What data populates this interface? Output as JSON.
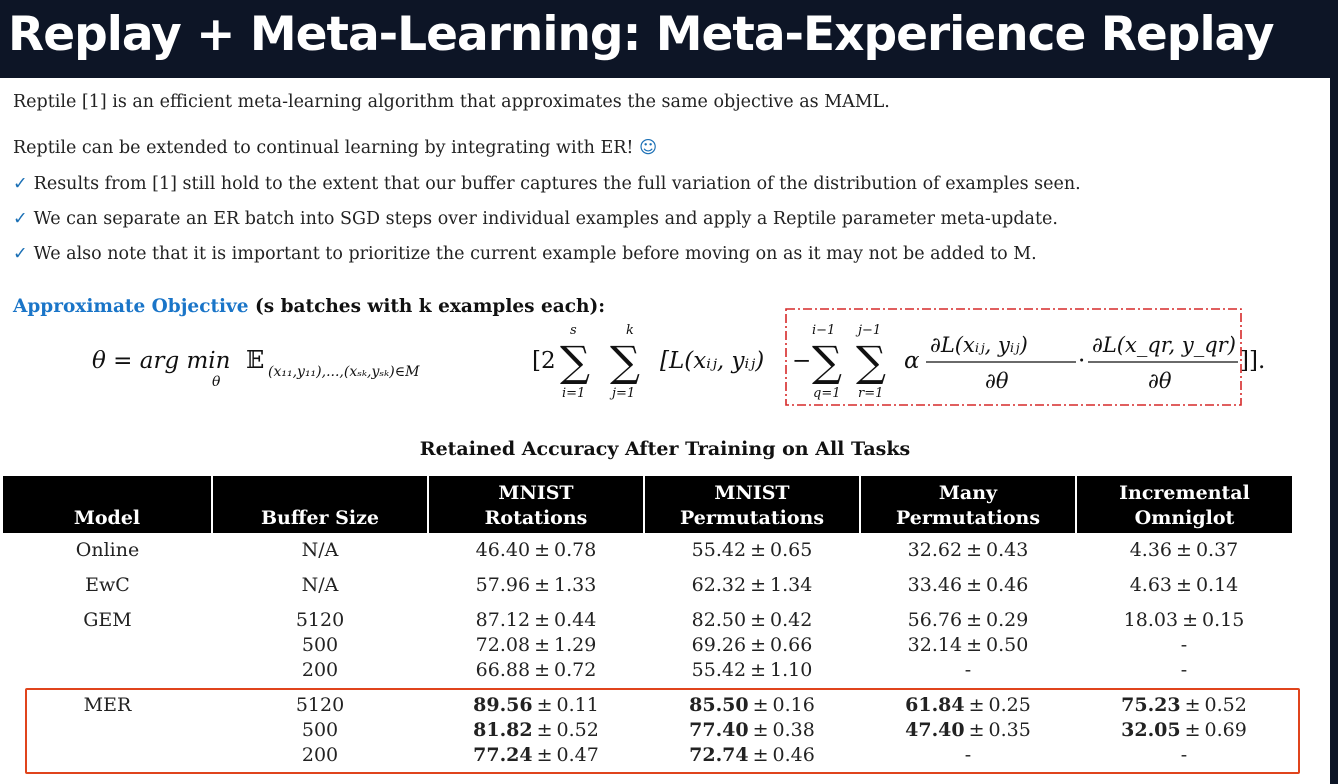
{
  "slide_title": "Replay + Meta-Learning: Meta-Experience Replay",
  "intro_lines": [
    "Reptile [1] is an efficient meta-learning algorithm that approximates the same objective as MAML.",
    "Reptile can be extended to continual learning by integrating with ER!"
  ],
  "smile_glyph": "☺",
  "check_glyph": "✓",
  "bullets": [
    "Results from [1] still hold to the extent that our buffer captures the full variation of the distribution of examples seen.",
    "We can separate an ER batch into SGD steps over individual examples and apply a Reptile parameter meta-update.",
    "We also note that it is important to prioritize the current example before moving on as it may not be added to M."
  ],
  "objective": {
    "heading_blue": "Approximate Objective",
    "heading_rest": " (s batches with k examples each):",
    "lhs": "θ = arg min",
    "argmin_sub": "θ",
    "expectation": "𝔼",
    "expectation_sub": "(x₁₁,y₁₁),...,(xₛₖ,yₛₖ)∈M",
    "bracket_open": "[2",
    "sum1_top": "s",
    "sum1_bottom": "i=1",
    "sum2_top": "k",
    "sum2_bottom": "j=1",
    "loss_term": "[L(xᵢⱼ, yᵢⱼ)",
    "minus": "−",
    "sum3_top": "i−1",
    "sum3_bottom": "q=1",
    "sum4_top": "j−1",
    "sum4_bottom": "r=1",
    "alpha": "α",
    "frac1_num": "∂L(xᵢⱼ, yᵢⱼ)",
    "frac1_den": "∂θ",
    "dot": "·",
    "frac2_num": "∂L(x_qr, y_qr)",
    "frac2_den": "∂θ",
    "closing": "]].",
    "sum_glyph": "∑"
  },
  "table": {
    "caption": "Retained Accuracy After Training on All Tasks",
    "headers": [
      [
        "",
        "Model"
      ],
      [
        "",
        "Buffer Size"
      ],
      [
        "MNIST",
        "Rotations"
      ],
      [
        "MNIST",
        "Permutations"
      ],
      [
        "Many",
        "Permutations"
      ],
      [
        "Incremental",
        "Omniglot"
      ]
    ],
    "rows": [
      {
        "model": "Online",
        "buffers": [
          "N/A"
        ],
        "rot": [
          {
            "v": "46.40",
            "e": "0.78"
          }
        ],
        "perm": [
          {
            "v": "55.42",
            "e": "0.65"
          }
        ],
        "many": [
          {
            "v": "32.62",
            "e": "0.43"
          }
        ],
        "omni": [
          {
            "v": "4.36",
            "e": "0.37"
          }
        ]
      },
      {
        "model": "EwC",
        "buffers": [
          "N/A"
        ],
        "rot": [
          {
            "v": "57.96",
            "e": "1.33"
          }
        ],
        "perm": [
          {
            "v": "62.32",
            "e": "1.34"
          }
        ],
        "many": [
          {
            "v": "33.46",
            "e": "0.46"
          }
        ],
        "omni": [
          {
            "v": "4.63",
            "e": "0.14"
          }
        ]
      },
      {
        "model": "GEM",
        "buffers": [
          "5120",
          "500",
          "200"
        ],
        "rot": [
          {
            "v": "87.12",
            "e": "0.44"
          },
          {
            "v": "72.08",
            "e": "1.29"
          },
          {
            "v": "66.88",
            "e": "0.72"
          }
        ],
        "perm": [
          {
            "v": "82.50",
            "e": "0.42"
          },
          {
            "v": "69.26",
            "e": "0.66"
          },
          {
            "v": "55.42",
            "e": "1.10"
          }
        ],
        "many": [
          {
            "v": "56.76",
            "e": "0.29"
          },
          {
            "v": "32.14",
            "e": "0.50"
          },
          {
            "dash": "-"
          }
        ],
        "omni": [
          {
            "v": "18.03",
            "e": "0.15"
          },
          {
            "dash": "-"
          },
          {
            "dash": "-"
          }
        ]
      },
      {
        "model": "MER",
        "buffers": [
          "5120",
          "500",
          "200"
        ],
        "rot": [
          {
            "v": "89.56",
            "e": "0.11"
          },
          {
            "v": "81.82",
            "e": "0.52"
          },
          {
            "v": "77.24",
            "e": "0.47"
          }
        ],
        "perm": [
          {
            "v": "85.50",
            "e": "0.16"
          },
          {
            "v": "77.40",
            "e": "0.38"
          },
          {
            "v": "72.74",
            "e": "0.46"
          }
        ],
        "many": [
          {
            "v": "61.84",
            "e": "0.25"
          },
          {
            "v": "47.40",
            "e": "0.35"
          },
          {
            "dash": "-"
          }
        ],
        "omni": [
          {
            "v": "75.23",
            "e": "0.52"
          },
          {
            "v": "32.05",
            "e": "0.69"
          },
          {
            "dash": "-"
          }
        ]
      }
    ],
    "pm_symbol": "±"
  },
  "colors": {
    "title_bg": "#0d1526",
    "accent_blue": "#1a75c8",
    "highlight_red": "#e0441c",
    "dashed_red": "#d62a2a",
    "table_header_bg": "#000000"
  }
}
